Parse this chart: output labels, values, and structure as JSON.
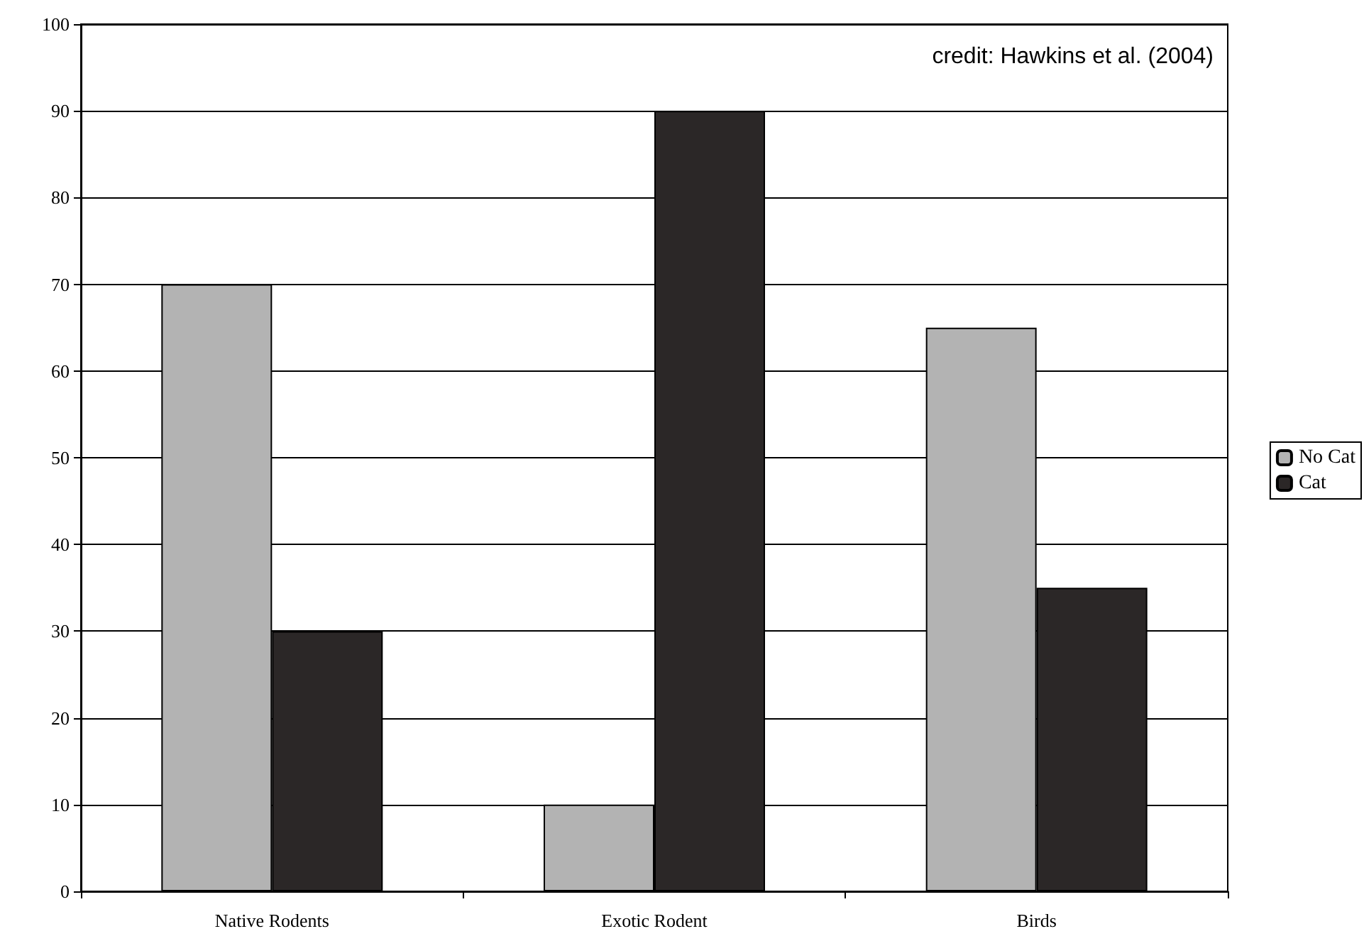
{
  "chart_data": {
    "type": "bar",
    "categories": [
      "Native Rodents",
      "Exotic Rodent",
      "Birds"
    ],
    "series": [
      {
        "name": "No Cat",
        "color": "#b3b3b3",
        "values": [
          70,
          10,
          65
        ]
      },
      {
        "name": "Cat",
        "color": "#2b2727",
        "values": [
          30,
          90,
          35
        ]
      }
    ],
    "ylim": [
      0,
      100
    ],
    "yticks": [
      0,
      10,
      20,
      30,
      40,
      50,
      60,
      70,
      80,
      90,
      100
    ],
    "grid": "y",
    "legend": "right",
    "annotations": [
      "credit: Hawkins et al. (2004)"
    ]
  }
}
